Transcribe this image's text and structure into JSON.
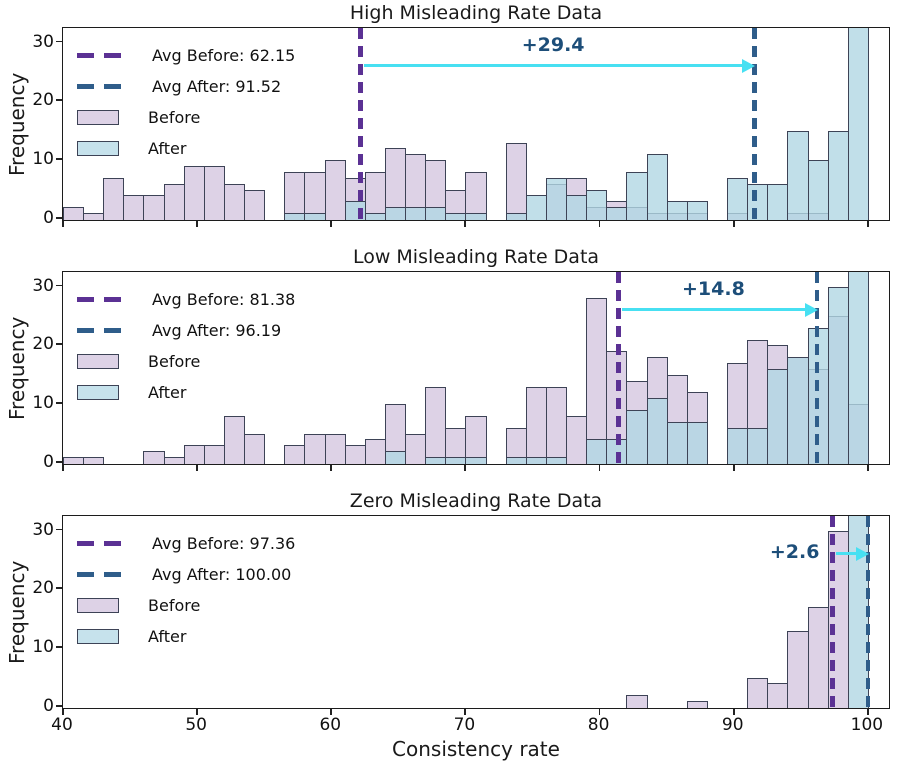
{
  "figure": {
    "x_axis": {
      "label": "Consistency rate",
      "tick_labels": [
        "40",
        "50",
        "60",
        "70",
        "80",
        "90",
        "100"
      ],
      "tick_values": [
        40,
        50,
        60,
        70,
        80,
        90,
        100
      ],
      "min": 40,
      "max": 101.5
    },
    "y_axis": {
      "label": "Frequency",
      "tick_labels": [
        "0",
        "10",
        "20",
        "30"
      ],
      "tick_values": [
        0,
        10,
        20,
        30
      ],
      "max": 32.5
    },
    "bins": {
      "start": 40,
      "width": 1.5,
      "count": 40
    },
    "legend_labels": {
      "before": "Before",
      "after": "After"
    },
    "colors": {
      "before_fill": "#ddd2e6",
      "after_fill": "rgba(178,215,228,0.8)",
      "bar_edge": "#3d4356",
      "avg_before_line": "#5b3194",
      "avg_after_line": "#2f5d8a",
      "arrow": "#47e0f2",
      "annotation_text": "#1d4e79",
      "spine": "#1c1c1c"
    }
  },
  "chart_data": [
    {
      "type": "histogram",
      "title": "High Misleading Rate Data",
      "avg_before": 62.15,
      "avg_after": 91.52,
      "avg_before_label": "Avg Before: 62.15",
      "avg_after_label": "Avg After: 91.52",
      "annotation": "+29.4",
      "annotation_mode": "between",
      "series": [
        {
          "name": "Before",
          "counts": [
            2,
            1,
            7,
            4,
            4,
            6,
            9,
            9,
            6,
            5,
            0,
            8,
            8,
            10,
            7,
            8,
            12,
            11,
            10,
            5,
            8,
            0,
            13,
            0,
            6,
            7,
            2,
            3,
            2,
            1,
            1,
            1,
            0,
            1,
            0,
            0,
            1,
            1,
            0,
            0
          ]
        },
        {
          "name": "After",
          "counts": [
            0,
            0,
            0,
            0,
            0,
            0,
            0,
            0,
            0,
            0,
            0,
            1,
            1,
            0,
            3,
            1,
            2,
            2,
            2,
            1,
            1,
            0,
            1,
            4,
            7,
            4,
            5,
            2,
            8,
            11,
            3,
            3,
            0,
            7,
            6,
            6,
            15,
            10,
            15,
            33
          ]
        }
      ]
    },
    {
      "type": "histogram",
      "title": "Low Misleading Rate Data",
      "avg_before": 81.38,
      "avg_after": 96.19,
      "avg_before_label": "Avg Before: 81.38",
      "avg_after_label": "Avg After: 96.19",
      "annotation": "+14.8",
      "annotation_mode": "between",
      "series": [
        {
          "name": "Before",
          "counts": [
            1,
            1,
            0,
            0,
            2,
            1,
            3,
            3,
            8,
            5,
            0,
            3,
            5,
            5,
            3,
            4,
            10,
            5,
            13,
            6,
            8,
            0,
            6,
            13,
            13,
            8,
            28,
            19,
            14,
            18,
            15,
            12,
            0,
            17,
            21,
            20,
            18,
            16,
            25,
            10
          ]
        },
        {
          "name": "After",
          "counts": [
            0,
            0,
            0,
            0,
            0,
            0,
            0,
            0,
            0,
            0,
            0,
            0,
            0,
            0,
            0,
            0,
            2,
            0,
            1,
            1,
            1,
            0,
            1,
            1,
            1,
            0,
            4,
            4,
            9,
            11,
            7,
            7,
            0,
            6,
            6,
            16,
            18,
            23,
            30,
            33
          ]
        }
      ]
    },
    {
      "type": "histogram",
      "title": "Zero Misleading Rate Data",
      "avg_before": 97.36,
      "avg_after": 100.0,
      "avg_before_label": "Avg Before: 97.36",
      "avg_after_label": "Avg After: 100.00",
      "annotation": "+2.6",
      "annotation_mode": "left",
      "series": [
        {
          "name": "Before",
          "counts": [
            0,
            0,
            0,
            0,
            0,
            0,
            0,
            0,
            0,
            0,
            0,
            0,
            0,
            0,
            0,
            0,
            0,
            0,
            0,
            0,
            0,
            0,
            0,
            0,
            0,
            0,
            0,
            0,
            2,
            0,
            0,
            1,
            0,
            0,
            5,
            4,
            13,
            17,
            30,
            0
          ]
        },
        {
          "name": "After",
          "counts": [
            0,
            0,
            0,
            0,
            0,
            0,
            0,
            0,
            0,
            0,
            0,
            0,
            0,
            0,
            0,
            0,
            0,
            0,
            0,
            0,
            0,
            0,
            0,
            0,
            0,
            0,
            0,
            0,
            0,
            0,
            0,
            0,
            0,
            0,
            0,
            0,
            0,
            0,
            0,
            33
          ]
        }
      ]
    }
  ]
}
